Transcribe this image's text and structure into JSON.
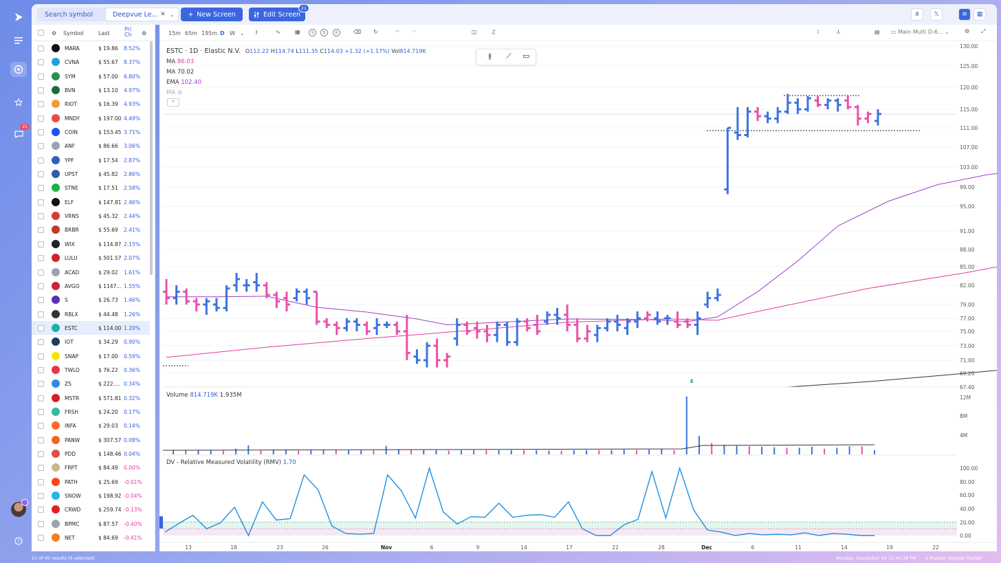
{
  "sidebar": {
    "alerts_badge": "21"
  },
  "topbar": {
    "search_label": "Search symbol",
    "screen_name": "Deepvue Le...",
    "new_screen_label": "New Screen",
    "edit_screen_label": "Edit Screen",
    "edit_screen_badge": "21"
  },
  "screener": {
    "columns": {
      "symbol": "Symbol",
      "last": "Last",
      "change": "Pri Ch"
    },
    "footer": "21 of 45 results (0 selected)",
    "rows": [
      {
        "sym": "MARA",
        "last": "$ 19.86",
        "chg": "8.52%",
        "color": "#111111",
        "sign": "pos"
      },
      {
        "sym": "CVNA",
        "last": "$ 55.67",
        "chg": "8.37%",
        "color": "#1fa3e0",
        "sign": "pos"
      },
      {
        "sym": "SYM",
        "last": "$ 57.00",
        "chg": "6.80%",
        "color": "#2e8b57",
        "sign": "pos"
      },
      {
        "sym": "BVN",
        "last": "$ 13.10",
        "chg": "4.97%",
        "color": "#1e6b3a",
        "sign": "pos"
      },
      {
        "sym": "RIOT",
        "last": "$ 16.39",
        "chg": "4.93%",
        "color": "#f29c38",
        "sign": "pos"
      },
      {
        "sym": "MNDY",
        "last": "$ 197.00",
        "chg": "4.49%",
        "color": "#e84b4b",
        "sign": "pos"
      },
      {
        "sym": "COIN",
        "last": "$ 153.45",
        "chg": "3.71%",
        "color": "#1c52f0",
        "sign": "pos"
      },
      {
        "sym": "ANF",
        "last": "$ 86.66",
        "chg": "3.06%",
        "color": "#9aa4b0",
        "sign": "pos"
      },
      {
        "sym": "YPF",
        "last": "$ 17.54",
        "chg": "2.87%",
        "color": "#2f5fb8",
        "sign": "pos"
      },
      {
        "sym": "UPST",
        "last": "$ 45.82",
        "chg": "2.86%",
        "color": "#2a5ea8",
        "sign": "pos"
      },
      {
        "sym": "STNE",
        "last": "$ 17.51",
        "chg": "2.58%",
        "color": "#19b34a",
        "sign": "pos"
      },
      {
        "sym": "ELF",
        "last": "$ 147.81",
        "chg": "2.46%",
        "color": "#111111",
        "sign": "pos"
      },
      {
        "sym": "VRNS",
        "last": "$ 45.32",
        "chg": "2.44%",
        "color": "#d43b3b",
        "sign": "pos"
      },
      {
        "sym": "BRBR",
        "last": "$ 55.69",
        "chg": "2.41%",
        "color": "#c0392b",
        "sign": "pos"
      },
      {
        "sym": "WIX",
        "last": "$ 114.87",
        "chg": "2.15%",
        "color": "#222222",
        "sign": "pos"
      },
      {
        "sym": "LULU",
        "last": "$ 501.57",
        "chg": "2.07%",
        "color": "#d11f2b",
        "sign": "pos"
      },
      {
        "sym": "ACAD",
        "last": "$ 29.02",
        "chg": "1.61%",
        "color": "#9aa4b0",
        "sign": "pos"
      },
      {
        "sym": "AVGO",
        "last": "$ 1147...",
        "chg": "1.55%",
        "color": "#cc2233",
        "sign": "pos"
      },
      {
        "sym": "S",
        "last": "$ 26.73",
        "chg": "1.46%",
        "color": "#5b2fb3",
        "sign": "pos"
      },
      {
        "sym": "RBLX",
        "last": "$ 44.48",
        "chg": "1.26%",
        "color": "#333333",
        "sign": "pos"
      },
      {
        "sym": "ESTC",
        "last": "$ 114.00",
        "chg": "1.20%",
        "color": "#20b0a8",
        "sign": "pos",
        "selected": true
      },
      {
        "sym": "IOT",
        "last": "$ 34.29",
        "chg": "0.90%",
        "color": "#1f3a5f",
        "sign": "pos"
      },
      {
        "sym": "SNAP",
        "last": "$ 17.00",
        "chg": "0.59%",
        "color": "#f5e400",
        "sign": "pos"
      },
      {
        "sym": "TWLO",
        "last": "$ 76.22",
        "chg": "0.36%",
        "color": "#e8334a",
        "sign": "pos"
      },
      {
        "sym": "ZS",
        "last": "$ 222....",
        "chg": "0.34%",
        "color": "#2a8be0",
        "sign": "pos"
      },
      {
        "sym": "MSTR",
        "last": "$ 571.81",
        "chg": "0.32%",
        "color": "#d1202a",
        "sign": "pos"
      },
      {
        "sym": "FRSH",
        "last": "$ 24.20",
        "chg": "0.17%",
        "color": "#2fb9a0",
        "sign": "pos"
      },
      {
        "sym": "INFA",
        "last": "$ 29.03",
        "chg": "0.14%",
        "color": "#ff6a2b",
        "sign": "pos"
      },
      {
        "sym": "PANW",
        "last": "$ 307.57",
        "chg": "0.08%",
        "color": "#f26522",
        "sign": "pos"
      },
      {
        "sym": "PDD",
        "last": "$ 148.46",
        "chg": "0.04%",
        "color": "#e44d4d",
        "sign": "pos"
      },
      {
        "sym": "FRPT",
        "last": "$ 84.49",
        "chg": "0.00%",
        "color": "#c8b88a",
        "sign": "zero"
      },
      {
        "sym": "PATH",
        "last": "$ 25.69",
        "chg": "-0.01%",
        "color": "#fa4616",
        "sign": "neg"
      },
      {
        "sym": "SNOW",
        "last": "$ 198.92",
        "chg": "-0.04%",
        "color": "#29b5e8",
        "sign": "neg"
      },
      {
        "sym": "CRWD",
        "last": "$ 259.74",
        "chg": "-0.13%",
        "color": "#e01e25",
        "sign": "neg"
      },
      {
        "sym": "BPMC",
        "last": "$ 87.57",
        "chg": "-0.40%",
        "color": "#9aa4b0",
        "sign": "neg"
      },
      {
        "sym": "NET",
        "last": "$ 84.69",
        "chg": "-0.41%",
        "color": "#f38020",
        "sign": "neg"
      }
    ]
  },
  "toolbar": {
    "intervals": [
      "15m",
      "65m",
      "195m",
      "D",
      "W"
    ],
    "active_interval": "D",
    "circle_buttons": [
      "S",
      "S",
      "K"
    ],
    "layout_name": "Main Multi D-6..."
  },
  "legend": {
    "title": "ESTC · 1D · Elastic N.V.",
    "ohlc": {
      "O": "112.22",
      "H": "114.74",
      "L": "111.35",
      "C": "114.03",
      "change": "+1.32 (+1.17%)",
      "vol": "814.719K"
    },
    "ma1": {
      "label": "MA",
      "value": "86.03"
    },
    "ma2": {
      "label": "MA",
      "value": "70.02"
    },
    "ema": {
      "label": "EMA",
      "value": "102.40"
    },
    "ma_hidden": {
      "label": "MA"
    },
    "volume": {
      "label": "Volume",
      "v1": "814.719K",
      "v2": "1.935M"
    },
    "rmv": {
      "label": "DV - Relative Measured Volatility (RMV)",
      "value": "1.70"
    },
    "earnings_marker": "E"
  },
  "chart_data": {
    "type": "ohlc",
    "symbol": "ESTC",
    "interval": "1D",
    "price_axis_ticks": [
      "130.00",
      "125.00",
      "120.00",
      "115.00",
      "111.00",
      "107.00",
      "103.00",
      "99.00",
      "95.00",
      "91.00",
      "88.00",
      "85.00",
      "82.00",
      "79.00",
      "77.00",
      "75.00",
      "73.00",
      "71.00",
      "69.20",
      "67.40"
    ],
    "volume_axis_ticks": [
      "12M",
      "8M",
      "4M"
    ],
    "rmv_axis_ticks": [
      "100.00",
      "80.00",
      "60.00",
      "40.00",
      "20.00",
      "0.00"
    ],
    "x_ticks": [
      "13",
      "18",
      "23",
      "26",
      "Nov",
      "6",
      "9",
      "14",
      "17",
      "22",
      "28",
      "Dec",
      "6",
      "11",
      "14",
      "19",
      "22"
    ],
    "bars": [
      {
        "o": 81,
        "h": 83,
        "l": 79,
        "c": 80,
        "up": false
      },
      {
        "o": 80,
        "h": 82,
        "l": 79,
        "c": 81,
        "up": true
      },
      {
        "o": 81,
        "h": 81.5,
        "l": 79,
        "c": 79.5,
        "up": false
      },
      {
        "o": 79.5,
        "h": 80,
        "l": 78,
        "c": 79,
        "up": false
      },
      {
        "o": 79,
        "h": 80,
        "l": 77.5,
        "c": 79.5,
        "up": true
      },
      {
        "o": 79,
        "h": 80,
        "l": 78,
        "c": 78.5,
        "up": true
      },
      {
        "o": 78.5,
        "h": 82,
        "l": 78,
        "c": 81.5,
        "up": true
      },
      {
        "o": 82,
        "h": 84,
        "l": 81,
        "c": 83,
        "up": true
      },
      {
        "o": 82,
        "h": 83,
        "l": 81,
        "c": 82,
        "up": true
      },
      {
        "o": 82.5,
        "h": 84,
        "l": 81,
        "c": 82,
        "up": true
      },
      {
        "o": 82,
        "h": 82.5,
        "l": 80,
        "c": 80.5,
        "up": false
      },
      {
        "o": 80.5,
        "h": 81,
        "l": 78.5,
        "c": 79.5,
        "up": false
      },
      {
        "o": 80,
        "h": 81,
        "l": 78,
        "c": 79,
        "up": false
      },
      {
        "o": 80,
        "h": 81.5,
        "l": 79.5,
        "c": 81,
        "up": true
      },
      {
        "o": 81,
        "h": 81.5,
        "l": 79,
        "c": 80,
        "up": true
      },
      {
        "o": 81,
        "h": 81,
        "l": 76,
        "c": 76.5,
        "up": false
      },
      {
        "o": 76.5,
        "h": 77,
        "l": 75.5,
        "c": 76,
        "up": false
      },
      {
        "o": 76,
        "h": 76.5,
        "l": 74.5,
        "c": 75.5,
        "up": false
      },
      {
        "o": 75.5,
        "h": 77,
        "l": 75,
        "c": 76.5,
        "up": true
      },
      {
        "o": 76.5,
        "h": 77,
        "l": 75,
        "c": 76,
        "up": true
      },
      {
        "o": 76,
        "h": 76.5,
        "l": 74.5,
        "c": 75,
        "up": false
      },
      {
        "o": 75.5,
        "h": 77,
        "l": 74.5,
        "c": 76,
        "up": true
      },
      {
        "o": 76,
        "h": 76.5,
        "l": 75.5,
        "c": 76,
        "up": true
      },
      {
        "o": 76,
        "h": 76.5,
        "l": 74.5,
        "c": 75,
        "up": false
      },
      {
        "o": 75,
        "h": 77.5,
        "l": 71,
        "c": 72,
        "up": false
      },
      {
        "o": 71.5,
        "h": 72.5,
        "l": 70.5,
        "c": 71,
        "up": true
      },
      {
        "o": 71,
        "h": 73.5,
        "l": 70,
        "c": 73,
        "up": true
      },
      {
        "o": 73,
        "h": 74,
        "l": 70,
        "c": 71,
        "up": false
      },
      {
        "o": 71,
        "h": 72,
        "l": 70,
        "c": 71.5,
        "up": false
      },
      {
        "o": 74,
        "h": 77,
        "l": 73,
        "c": 76,
        "up": true
      },
      {
        "o": 76,
        "h": 76.5,
        "l": 74.5,
        "c": 75,
        "up": false
      },
      {
        "o": 75.5,
        "h": 76.5,
        "l": 74,
        "c": 75,
        "up": false
      },
      {
        "o": 75,
        "h": 76,
        "l": 73.5,
        "c": 74.5,
        "up": false
      },
      {
        "o": 74.5,
        "h": 76.5,
        "l": 73.5,
        "c": 76,
        "up": true
      },
      {
        "o": 76,
        "h": 76.5,
        "l": 73,
        "c": 73.5,
        "up": true
      },
      {
        "o": 73.5,
        "h": 77,
        "l": 73,
        "c": 76.5,
        "up": true
      },
      {
        "o": 76.5,
        "h": 77,
        "l": 75,
        "c": 75.5,
        "up": false
      },
      {
        "o": 76,
        "h": 77.5,
        "l": 74.5,
        "c": 75,
        "up": false
      },
      {
        "o": 76.5,
        "h": 78,
        "l": 76,
        "c": 77.5,
        "up": true
      },
      {
        "o": 77.5,
        "h": 78.5,
        "l": 76,
        "c": 77,
        "up": true
      },
      {
        "o": 77.5,
        "h": 79,
        "l": 75,
        "c": 76,
        "up": false
      },
      {
        "o": 76,
        "h": 77,
        "l": 73.5,
        "c": 74,
        "up": false
      },
      {
        "o": 74,
        "h": 76,
        "l": 73.5,
        "c": 75,
        "up": false
      },
      {
        "o": 74.5,
        "h": 76,
        "l": 73.5,
        "c": 75.5,
        "up": true
      },
      {
        "o": 75.5,
        "h": 77,
        "l": 75,
        "c": 76.5,
        "up": true
      },
      {
        "o": 76.5,
        "h": 77.5,
        "l": 75,
        "c": 76,
        "up": true
      },
      {
        "o": 75.5,
        "h": 77,
        "l": 74.5,
        "c": 76.5,
        "up": true
      },
      {
        "o": 76.5,
        "h": 78,
        "l": 75.5,
        "c": 77,
        "up": true
      },
      {
        "o": 77,
        "h": 78,
        "l": 76.5,
        "c": 77.5,
        "up": false
      },
      {
        "o": 77,
        "h": 78,
        "l": 76,
        "c": 76.5,
        "up": true
      },
      {
        "o": 77,
        "h": 77.5,
        "l": 76,
        "c": 77,
        "up": true
      },
      {
        "o": 76.5,
        "h": 78,
        "l": 75.5,
        "c": 76,
        "up": false
      },
      {
        "o": 76.5,
        "h": 77,
        "l": 75.5,
        "c": 76,
        "up": false
      },
      {
        "o": 76,
        "h": 78,
        "l": 74.5,
        "c": 77,
        "up": true
      },
      {
        "o": 79,
        "h": 81,
        "l": 78.5,
        "c": 80,
        "up": true
      },
      {
        "o": 80,
        "h": 81.5,
        "l": 79.5,
        "c": 80.5,
        "up": true
      },
      {
        "o": 98.5,
        "h": 111,
        "l": 97.5,
        "c": 111,
        "up": true
      },
      {
        "o": 110,
        "h": 115.5,
        "l": 108.5,
        "c": 109.5,
        "up": true
      },
      {
        "o": 109.5,
        "h": 115.5,
        "l": 109,
        "c": 114.5,
        "up": true
      },
      {
        "o": 114.5,
        "h": 115.5,
        "l": 112.5,
        "c": 113.5,
        "up": false
      },
      {
        "o": 113.5,
        "h": 114.5,
        "l": 112,
        "c": 113,
        "up": true
      },
      {
        "o": 113,
        "h": 115.5,
        "l": 112,
        "c": 114.5,
        "up": true
      },
      {
        "o": 114.5,
        "h": 118.5,
        "l": 114,
        "c": 116.5,
        "up": true
      },
      {
        "o": 116.5,
        "h": 117.5,
        "l": 114,
        "c": 115,
        "up": true
      },
      {
        "o": 115,
        "h": 118,
        "l": 114.5,
        "c": 117.5,
        "up": true
      },
      {
        "o": 117,
        "h": 118,
        "l": 115.5,
        "c": 116,
        "up": false
      },
      {
        "o": 116,
        "h": 117.5,
        "l": 115,
        "c": 117,
        "up": true
      },
      {
        "o": 117,
        "h": 117.5,
        "l": 114.5,
        "c": 116,
        "up": true
      },
      {
        "o": 117,
        "h": 118,
        "l": 115,
        "c": 115.5,
        "up": false
      },
      {
        "o": 115.5,
        "h": 116,
        "l": 111.5,
        "c": 113,
        "up": false
      },
      {
        "o": 113,
        "h": 114.5,
        "l": 112,
        "c": 114,
        "up": false
      },
      {
        "o": 112.5,
        "h": 115,
        "l": 111.5,
        "c": 114,
        "up": true
      }
    ],
    "ema": [
      {
        "i": 0,
        "v": 80.2
      },
      {
        "i": 5,
        "v": 80.2
      },
      {
        "i": 10,
        "v": 80.3
      },
      {
        "i": 15,
        "v": 78.6
      },
      {
        "i": 20,
        "v": 77.9
      },
      {
        "i": 25,
        "v": 76.9
      },
      {
        "i": 28,
        "v": 76.0
      },
      {
        "i": 32,
        "v": 76.3
      },
      {
        "i": 40,
        "v": 76.9
      },
      {
        "i": 48,
        "v": 76.8
      },
      {
        "i": 52,
        "v": 76.5
      },
      {
        "i": 55,
        "v": 77.2
      },
      {
        "i": 59,
        "v": 81.0
      },
      {
        "i": 63,
        "v": 86.0
      },
      {
        "i": 67,
        "v": 91.8
      },
      {
        "i": 72,
        "v": 96.0
      },
      {
        "i": 77,
        "v": 99.5
      },
      {
        "i": 82,
        "v": 101.5
      },
      {
        "i": 86,
        "v": 102.4
      }
    ],
    "ma1": [
      {
        "i": 0,
        "v": 71.4
      },
      {
        "i": 10,
        "v": 72.8
      },
      {
        "i": 20,
        "v": 74.0
      },
      {
        "i": 30,
        "v": 75.1
      },
      {
        "i": 40,
        "v": 76.4
      },
      {
        "i": 50,
        "v": 76.9
      },
      {
        "i": 55,
        "v": 76.7
      },
      {
        "i": 60,
        "v": 78.3
      },
      {
        "i": 70,
        "v": 81.5
      },
      {
        "i": 80,
        "v": 84.1
      },
      {
        "i": 86,
        "v": 86.0
      }
    ],
    "ma2": [
      {
        "i": 62,
        "v": 67.2
      },
      {
        "i": 70,
        "v": 68.1
      },
      {
        "i": 78,
        "v": 69.0
      },
      {
        "i": 86,
        "v": 70.0
      }
    ],
    "volume_values_M": [
      0.9,
      0.9,
      0.8,
      0.9,
      0.8,
      1.2,
      1.9,
      0.9,
      0.9,
      0.9,
      0.8,
      0.9,
      0.9,
      1.0,
      0.9,
      0.9,
      0.9,
      1.8,
      1.1,
      1.0,
      0.9,
      0.9,
      0.8,
      0.9,
      0.9,
      0.9,
      0.9,
      0.9,
      0.9,
      0.9,
      0.8,
      0.8,
      0.9,
      0.9,
      0.9,
      0.9,
      1.0,
      0.9,
      1.0,
      1.1,
      0.9,
      12.2,
      3.9,
      2.4,
      2.0,
      1.8,
      1.7,
      1.6,
      1.5,
      1.4,
      1.4,
      1.6,
      1.2,
      1.4,
      1.7,
      1.7,
      0.9
    ],
    "rmv_values": [
      5,
      18,
      30,
      10,
      19,
      42,
      0,
      50,
      23,
      25,
      90,
      68,
      14,
      3,
      2,
      3,
      90,
      66,
      26,
      100,
      35,
      17,
      28,
      27,
      48,
      27,
      30,
      31,
      27,
      50,
      10,
      0,
      0,
      16,
      24,
      95,
      26,
      100,
      38,
      8,
      5,
      0,
      3,
      1,
      2,
      1,
      4,
      0,
      3,
      2,
      0,
      0
    ],
    "rmv_bands": [
      10,
      20
    ]
  },
  "status": {
    "left": "21 of 45 results (0 selected)",
    "datetime": "Monday, December 18 11:45:38 PM",
    "market": "Market: Regular Market"
  }
}
